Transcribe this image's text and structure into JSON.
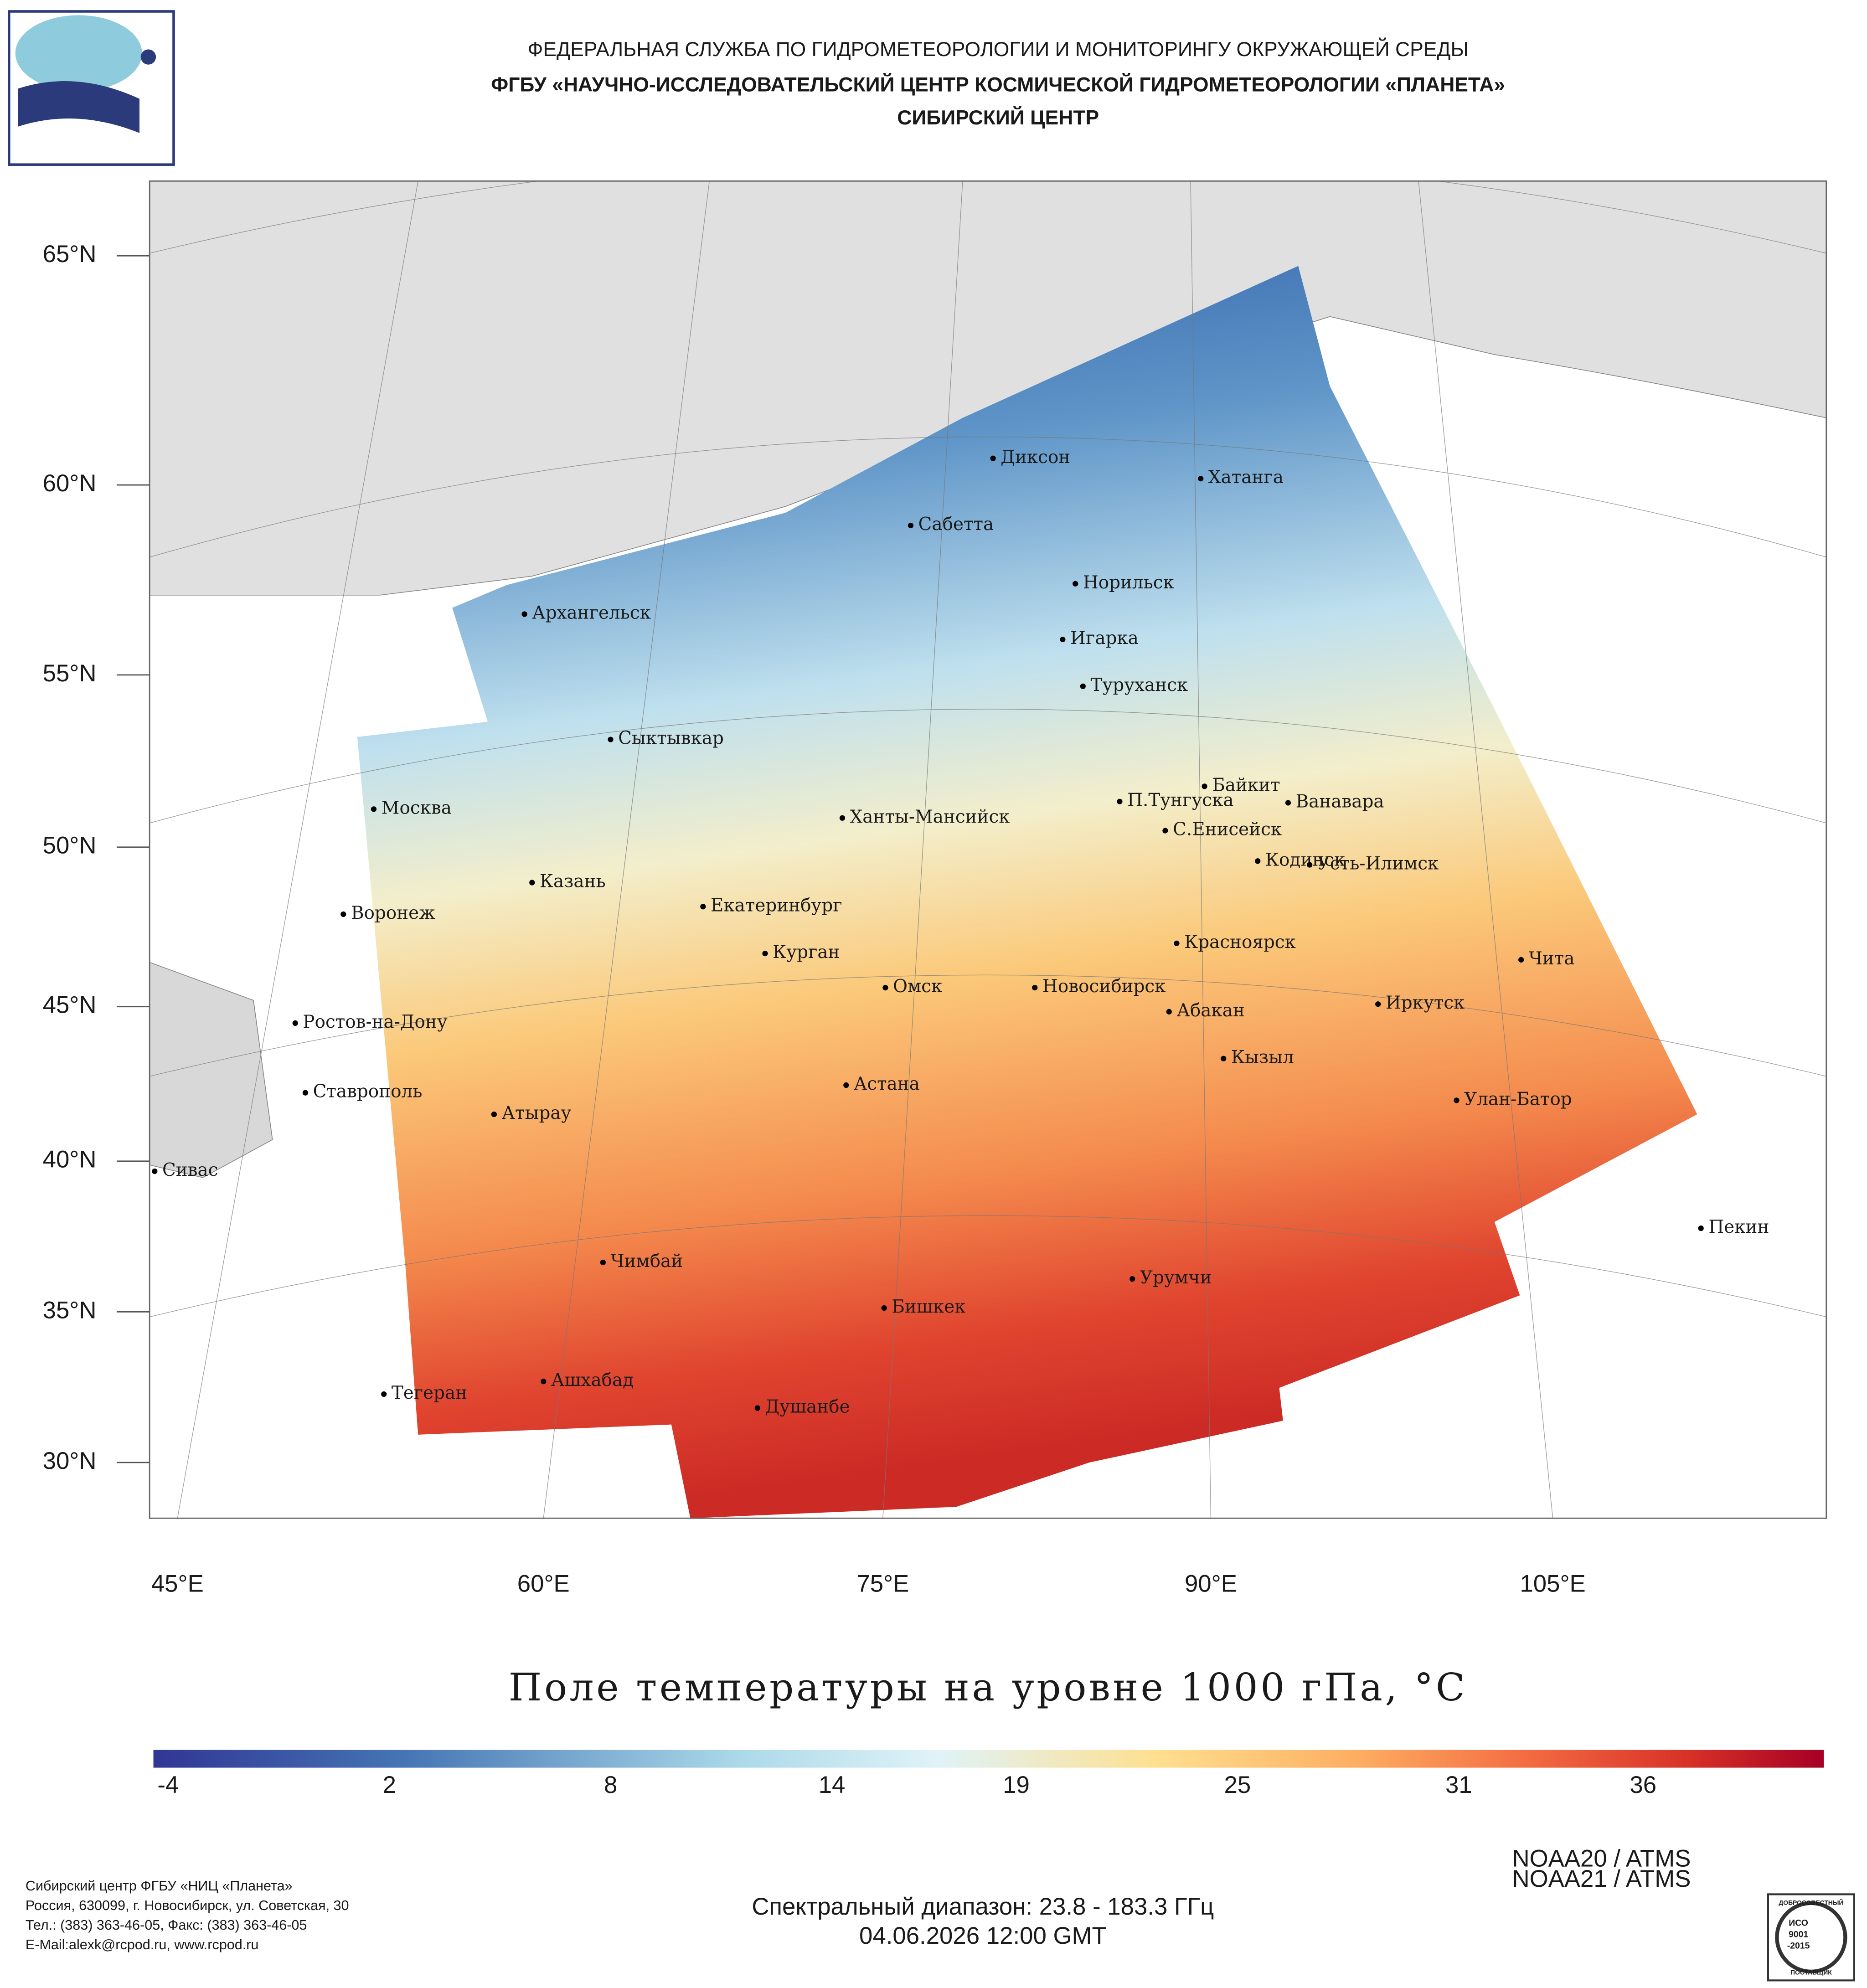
{
  "header": {
    "line1": "ФЕДЕРАЛЬНАЯ СЛУЖБА ПО ГИДРОМЕТЕОРОЛОГИИ И МОНИТОРИНГУ ОКРУЖАЮЩЕЙ СРЕДЫ",
    "line2": "ФГБУ «НАУЧНО-ИССЛЕДОВАТЕЛЬСКИЙ ЦЕНТР КОСМИЧЕСКОЙ ГИДРОМЕТЕОРОЛОГИИ «ПЛАНЕТА»",
    "line3": "СИБИРСКИЙ ЦЕНТР"
  },
  "map": {
    "lat_labels": [
      "65°N",
      "60°N",
      "55°N",
      "50°N",
      "45°N",
      "40°N",
      "35°N",
      "30°N"
    ],
    "lon_labels": [
      "45°E",
      "60°E",
      "75°E",
      "90°E",
      "105°E"
    ],
    "cities": [
      "Диксон",
      "Хатанга",
      "Сабетта",
      "Норильск",
      "Архангельск",
      "Игарка",
      "Туруханск",
      "Сыктывкар",
      "Байкит",
      "П.Тунгуска",
      "Ванавара",
      "Москва",
      "Ханты-Мансийск",
      "С.Енисейск",
      "Кодинск",
      "Усть-Илимск",
      "Казань",
      "Екатеринбург",
      "Воронеж",
      "Красноярск",
      "Курган",
      "Чита",
      "Омск",
      "Новосибирск",
      "Иркутск",
      "Абакан",
      "Ростов-на-Дону",
      "Кызыл",
      "Астана",
      "Ставрополь",
      "Улан-Батор",
      "Атырау",
      "Сивас",
      "Пекин",
      "Чимбай",
      "Урумчи",
      "Бишкек",
      "Ашхабад",
      "Тегеран",
      "Душанбе"
    ]
  },
  "title": "Поле температуры на уровне 1000 гПа, °C",
  "colorbar": {
    "lim": [
      -4.4,
      40.9
    ],
    "ticks": [
      -4,
      2,
      8,
      14,
      19,
      25,
      31,
      36
    ]
  },
  "footer": {
    "left": [
      "Сибирский центр ФГБУ «НИЦ «Планета»",
      "Россия, 630099, г. Новосибирск, ул. Советская, 30",
      "Тел.: (383) 363-46-05, Факс: (383) 363-46-05",
      "E-Mail:alexk@rcpod.ru, www.rcpod.ru"
    ],
    "center": [
      "Спектральный диапазон: 23.8 - 183.3 ГГц",
      "04.06.2026 12:00 GMT"
    ],
    "right": [
      "NOAA20 / ATMS",
      "NOAA21 / ATMS"
    ],
    "badge": [
      "ДОБРОСОВЕСТНЫЙ",
      "ИСО",
      "9001",
      "-2015",
      "ПОСТАВЩИК"
    ]
  }
}
